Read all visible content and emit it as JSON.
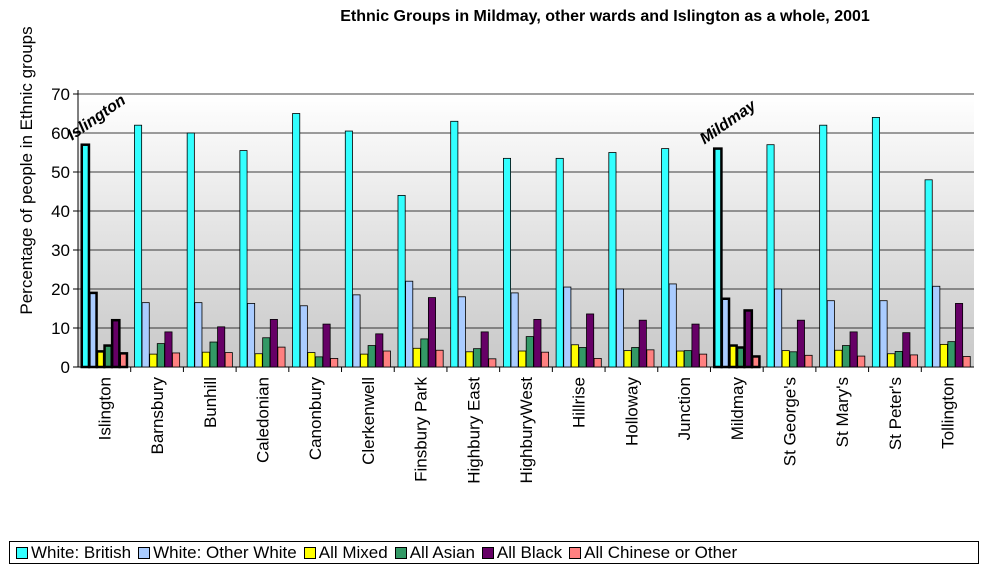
{
  "chart_data": {
    "type": "bar",
    "title": "Ethnic Groups in Mildmay, other wards and Islington as a whole, 2001",
    "ylabel": "Percentage of people in Ethnic groups",
    "xlabel": "",
    "ylim": [
      0,
      70
    ],
    "yticks": [
      0,
      10,
      20,
      30,
      40,
      50,
      60,
      70
    ],
    "grid": true,
    "legend_position": "bottom",
    "categories": [
      "Islington",
      "Barnsbury",
      "Bunhill",
      "Caledonian",
      "Canonbury",
      "Clerkenwell",
      "Finsbury Park",
      "Highbury East",
      "HighburyWest",
      "Hillrise",
      "Holloway",
      "Junction",
      "Mildmay",
      "St George's",
      "St Mary's",
      "St Peter's",
      "Tollington"
    ],
    "highlighted": [
      "Islington",
      "Mildmay"
    ],
    "annotations": [
      {
        "text": "Islington",
        "category": "Islington"
      },
      {
        "text": "Mildmay",
        "category": "Mildmay"
      }
    ],
    "series": [
      {
        "name": "White: British",
        "color": "#33FFFF",
        "values": [
          57,
          62,
          60,
          55.5,
          65,
          60.5,
          44,
          63,
          53.5,
          53.5,
          55,
          56,
          56,
          57,
          62,
          64,
          48
        ]
      },
      {
        "name": "White: Other White",
        "color": "#AACCFF",
        "values": [
          19,
          16.5,
          16.5,
          16.3,
          15.7,
          18.5,
          22,
          18,
          19,
          20.5,
          20,
          21.3,
          17.5,
          20,
          17,
          17,
          20.7
        ]
      },
      {
        "name": "All Mixed",
        "color": "#FFFF00",
        "values": [
          4,
          3.3,
          3.8,
          3.4,
          3.7,
          3.3,
          4.8,
          3.9,
          4.1,
          5.7,
          4.2,
          4.1,
          5.5,
          4.2,
          4.3,
          3.4,
          5.8
        ]
      },
      {
        "name": "All Asian",
        "color": "#339966",
        "values": [
          5.5,
          6,
          6.4,
          7.5,
          2.6,
          5.5,
          7.2,
          4.7,
          7.8,
          5,
          5,
          4.2,
          5,
          3.9,
          5.5,
          4,
          6.5
        ]
      },
      {
        "name": "All Black",
        "color": "#660066",
        "values": [
          12,
          9,
          10.3,
          12.2,
          11,
          8.5,
          17.8,
          9,
          12.2,
          13.6,
          12,
          11,
          14.5,
          12,
          9,
          8.8,
          16.3
        ]
      },
      {
        "name": "All Chinese or Other",
        "color": "#FF8080",
        "values": [
          3.5,
          3.6,
          3.7,
          5.1,
          2.2,
          4.1,
          4.3,
          2.1,
          3.8,
          2.2,
          4.4,
          3.3,
          2.7,
          3,
          2.8,
          3.1,
          2.7
        ]
      }
    ]
  }
}
